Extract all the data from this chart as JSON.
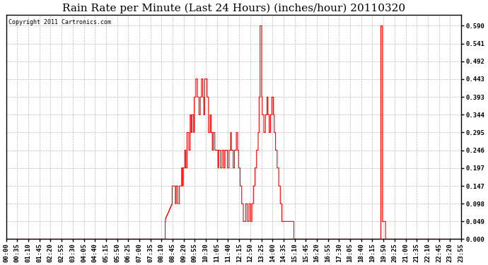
{
  "title": "Rain Rate per Minute (Last 24 Hours) (inches/hour) 20110320",
  "copyright": "Copyright 2011 Cartronics.com",
  "background_color": "#ffffff",
  "plot_bg_color": "#ffffff",
  "line_color": "#ff0000",
  "yticks": [
    0.0,
    0.049,
    0.098,
    0.147,
    0.197,
    0.246,
    0.295,
    0.344,
    0.393,
    0.443,
    0.492,
    0.541,
    0.59
  ],
  "ylim": [
    0.0,
    0.62
  ],
  "grid_color": "#bbbbbb",
  "title_fontsize": 11,
  "tick_fontsize": 6.5,
  "copyright_fontsize": 6,
  "x_tick_labels": [
    "00:00",
    "00:35",
    "01:10",
    "01:45",
    "02:20",
    "02:55",
    "03:30",
    "04:05",
    "04:40",
    "05:15",
    "05:50",
    "06:25",
    "07:00",
    "07:35",
    "08:10",
    "08:45",
    "09:20",
    "09:55",
    "10:30",
    "11:05",
    "11:40",
    "12:15",
    "12:50",
    "13:25",
    "14:00",
    "14:35",
    "15:10",
    "15:45",
    "16:20",
    "16:55",
    "17:30",
    "18:05",
    "18:40",
    "19:15",
    "19:50",
    "20:25",
    "21:00",
    "21:35",
    "22:10",
    "22:45",
    "23:20",
    "23:55"
  ],
  "total_minutes": 1440
}
